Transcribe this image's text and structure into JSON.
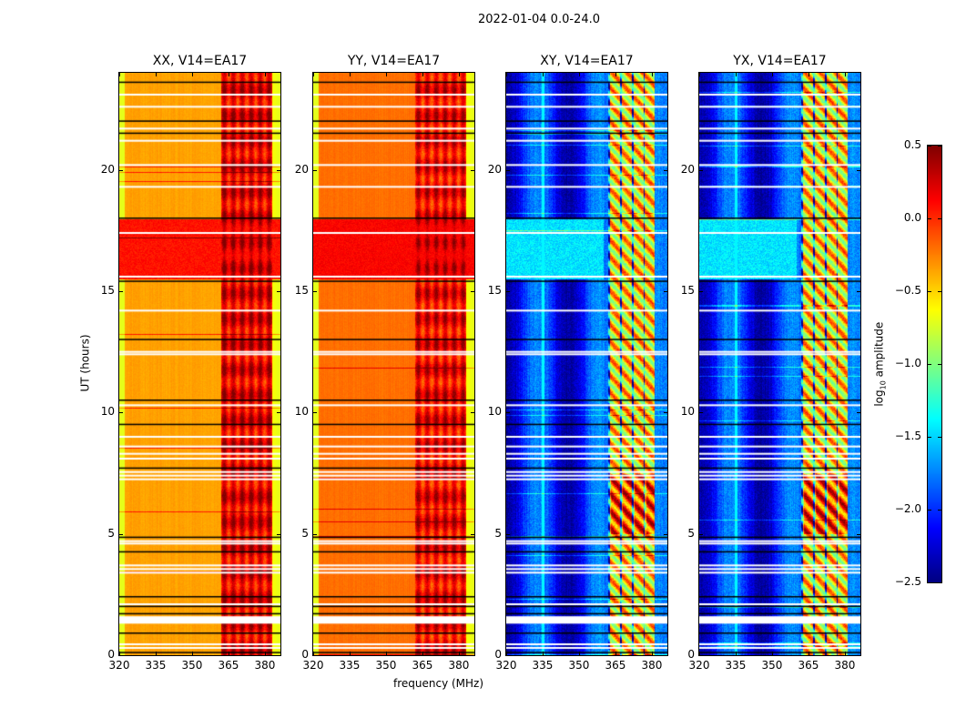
{
  "chart_data": {
    "type": "heatmap",
    "title": "2022-01-04 0.0-24.0",
    "xlabel": "frequency (MHz)",
    "ylabel": "UT (hours)",
    "xlim": [
      320,
      386.4
    ],
    "ylim": [
      0,
      24
    ],
    "xticks": [
      320,
      335,
      350,
      365,
      380
    ],
    "yticks": [
      0,
      5,
      10,
      15,
      20
    ],
    "colorbar": {
      "label_base": "log",
      "label_sub": "10",
      "label_rest": " amplitude",
      "range": [
        -2.5,
        0.5
      ],
      "ticks": [
        "0.5",
        "0.0",
        "−0.5",
        "−1.0",
        "−1.5",
        "−2.0",
        "−2.5"
      ],
      "tick_values": [
        0.5,
        0.0,
        -0.5,
        -1.0,
        -1.5,
        -2.0,
        -2.5
      ],
      "colormap": "jet"
    },
    "panels": [
      {
        "title": "XX, V14=EA17",
        "low_band_level": -0.4,
        "high_band_level": 0.1,
        "active_hours_level": 0.0,
        "edge_level": -0.7,
        "cross": false
      },
      {
        "title": "YY, V14=EA17",
        "low_band_level": -0.25,
        "high_band_level": 0.05,
        "active_hours_level": 0.05,
        "edge_level": -0.7,
        "cross": false
      },
      {
        "title": "XY, V14=EA17",
        "low_band_level": -2.25,
        "high_band_level": -0.7,
        "active_hours_level": -1.6,
        "edge_level": -2.3,
        "cross": true
      },
      {
        "title": "YX, V14=EA17",
        "low_band_level": -2.25,
        "high_band_level": -0.7,
        "active_hours_level": -1.6,
        "edge_level": -2.3,
        "cross": true
      }
    ],
    "high_band_start_mhz": 362,
    "active_hours": [
      15.5,
      18.0
    ],
    "flagged_hours_white": [
      0.3,
      0.45,
      1.35,
      1.45,
      1.55,
      2.1,
      3.4,
      3.55,
      3.7,
      4.6,
      4.7,
      7.25,
      7.4,
      7.55,
      8.1,
      8.3,
      8.6,
      9.0,
      10.3,
      12.4,
      12.5,
      14.2,
      15.6,
      17.4,
      19.3,
      20.2,
      21.2,
      21.7,
      22.6,
      23.1
    ],
    "flagged_hours_black": [
      0.1,
      0.9,
      1.7,
      2.0,
      2.4,
      4.25,
      4.85,
      7.7,
      9.5,
      10.5,
      13.0,
      15.4,
      18.0,
      21.5,
      22.0,
      23.6
    ]
  }
}
